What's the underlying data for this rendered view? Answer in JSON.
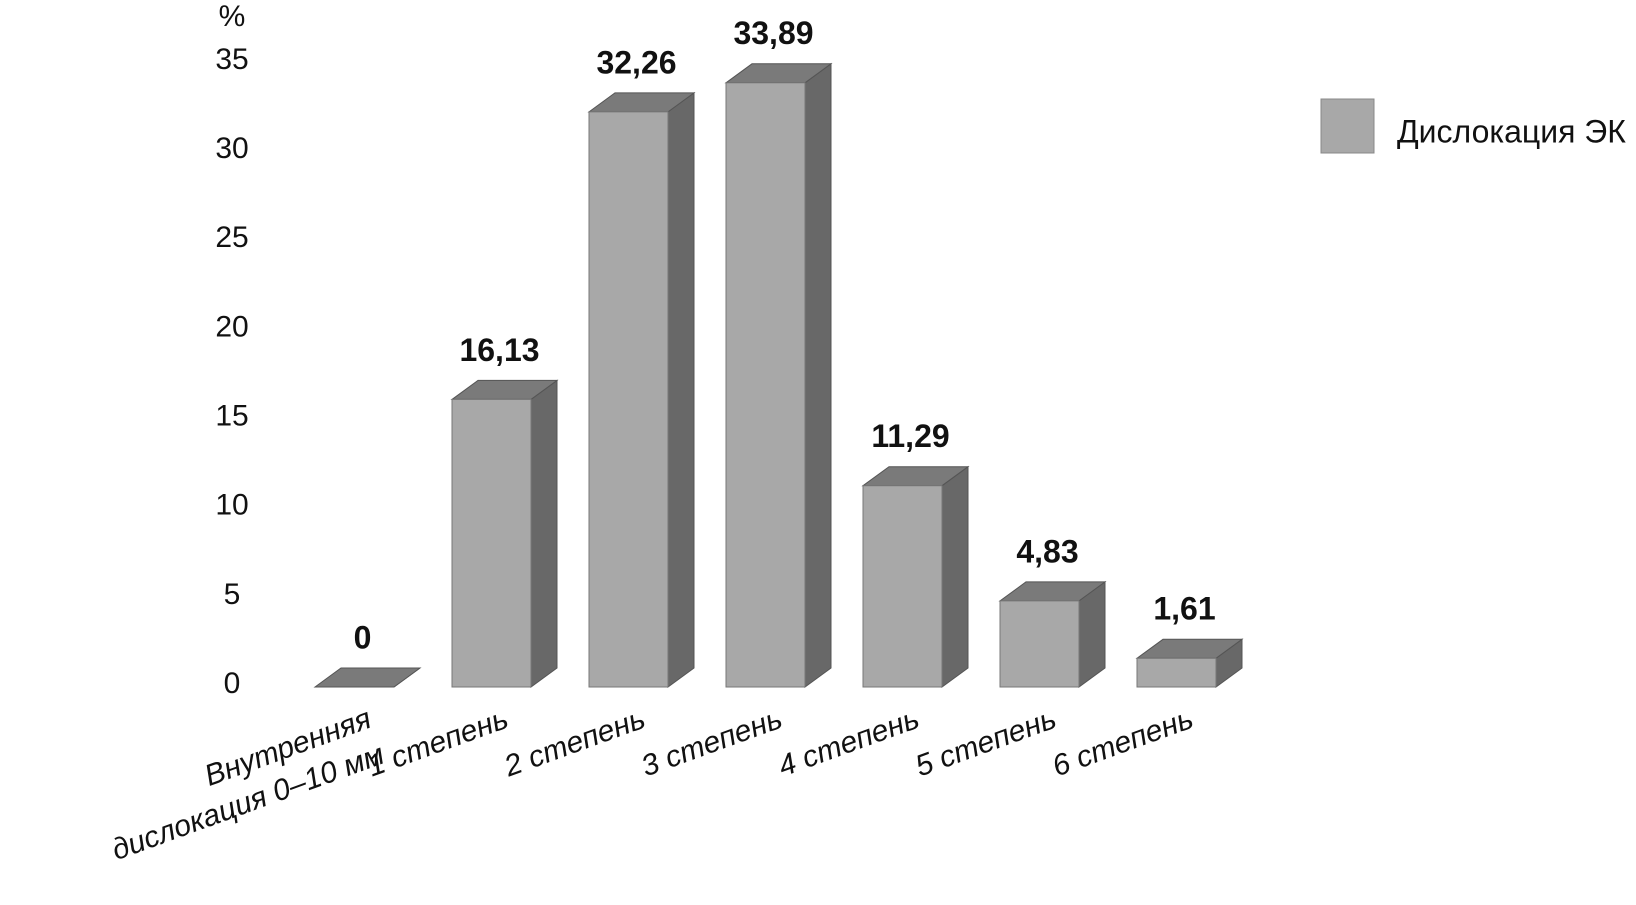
{
  "chart_data": {
    "type": "bar3d",
    "y_label": "%",
    "categories": [
      "Внутренняя\nдислокация 0–10 мм",
      "1 степень",
      "2 степень",
      "3 степень",
      "4 степень",
      "5 степень",
      "6 степень"
    ],
    "series": [
      {
        "name": "Дислокация ЭК",
        "color": "#a8a8a8",
        "values": [
          0,
          16.13,
          32.26,
          33.89,
          11.29,
          4.83,
          1.61
        ],
        "value_labels": [
          "0",
          "16,13",
          "32,26",
          "33,89",
          "11,29",
          "4,83",
          "1,61"
        ]
      }
    ],
    "ylim": [
      0,
      35
    ],
    "yticks": [
      0,
      5,
      10,
      15,
      20,
      25,
      30,
      35
    ],
    "grid": false,
    "legend": "top-right"
  }
}
